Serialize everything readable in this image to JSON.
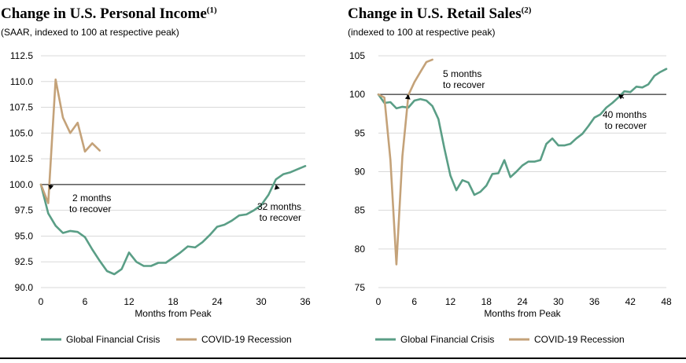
{
  "colors": {
    "gfc": "#5a9e86",
    "covid": "#c4a279",
    "reference": "#000000",
    "grid": "#d9d9d9",
    "axis_text": "#000000"
  },
  "chart_data": [
    {
      "type": "line",
      "title": "Change in U.S. Personal Income",
      "title_note": "(1)",
      "subtitle": "(SAAR, indexed to 100 at respective peak)",
      "xlabel": "Months from Peak",
      "ylabel": "",
      "xlim": [
        0,
        36
      ],
      "ylim": [
        90,
        112.5
      ],
      "xticks": [
        0,
        6,
        12,
        18,
        24,
        30,
        36
      ],
      "yticks": [
        90.0,
        92.5,
        95.0,
        97.5,
        100.0,
        102.5,
        105.0,
        107.5,
        110.0,
        112.5
      ],
      "ytick_labels": [
        "90.0",
        "92.5",
        "95.0",
        "97.5",
        "100.0",
        "102.5",
        "105.0",
        "107.5",
        "110.0",
        "112.5"
      ],
      "grid": "horizontal",
      "reference_line": 100,
      "legend": [
        "Global Financial Crisis",
        "COVID-19 Recession"
      ],
      "legend_position": "bottom",
      "series": [
        {
          "name": "Global Financial Crisis",
          "x": [
            0,
            1,
            2,
            3,
            4,
            5,
            6,
            7,
            8,
            9,
            10,
            11,
            12,
            13,
            14,
            15,
            16,
            17,
            18,
            19,
            20,
            21,
            22,
            23,
            24,
            25,
            26,
            27,
            28,
            29,
            30,
            31,
            32,
            33,
            34,
            35,
            36
          ],
          "values": [
            100.0,
            97.2,
            96.0,
            95.3,
            95.5,
            95.4,
            94.9,
            93.7,
            92.6,
            91.6,
            91.3,
            91.8,
            93.4,
            92.5,
            92.1,
            92.1,
            92.4,
            92.4,
            92.9,
            93.4,
            94.0,
            93.9,
            94.4,
            95.1,
            95.9,
            96.1,
            96.5,
            97.0,
            97.1,
            97.5,
            98.0,
            99.0,
            100.5,
            101.0,
            101.2,
            101.5,
            101.8
          ]
        },
        {
          "name": "COVID-19 Recession",
          "x": [
            0,
            1,
            2,
            3,
            4,
            5,
            6,
            7,
            8
          ],
          "values": [
            100.0,
            98.2,
            110.2,
            106.5,
            105.0,
            106.0,
            103.2,
            104.0,
            103.3
          ]
        }
      ],
      "annotations": [
        {
          "text": [
            "2 months",
            "to recover"
          ],
          "x": 1,
          "y": 100
        },
        {
          "text": [
            "32 months",
            "to recover"
          ],
          "x": 32,
          "y": 100
        }
      ]
    },
    {
      "type": "line",
      "title": "Change in U.S. Retail Sales",
      "title_note": "(2)",
      "subtitle": "(indexed to 100 at respective peak)",
      "xlabel": "Months from Peak",
      "ylabel": "",
      "xlim": [
        0,
        48
      ],
      "ylim": [
        75,
        105
      ],
      "xticks": [
        0,
        6,
        12,
        18,
        24,
        30,
        36,
        42,
        48
      ],
      "yticks": [
        75,
        80,
        85,
        90,
        95,
        100,
        105
      ],
      "ytick_labels": [
        "75",
        "80",
        "85",
        "90",
        "95",
        "100",
        "105"
      ],
      "grid": "horizontal",
      "reference_line": 100,
      "legend": [
        "Global Financial Crisis",
        "COVID-19 Recession"
      ],
      "legend_position": "bottom",
      "series": [
        {
          "name": "Global Financial Crisis",
          "x": [
            0,
            1,
            2,
            3,
            4,
            5,
            6,
            7,
            8,
            9,
            10,
            11,
            12,
            13,
            14,
            15,
            16,
            17,
            18,
            19,
            20,
            21,
            22,
            23,
            24,
            25,
            26,
            27,
            28,
            29,
            30,
            31,
            32,
            33,
            34,
            35,
            36,
            37,
            38,
            39,
            40,
            41,
            42,
            43,
            44,
            45,
            46,
            47,
            48
          ],
          "values": [
            100.0,
            98.9,
            99.0,
            98.2,
            98.4,
            98.3,
            99.2,
            99.4,
            99.2,
            98.5,
            96.8,
            93.0,
            89.5,
            87.6,
            88.9,
            88.6,
            87.0,
            87.4,
            88.2,
            89.7,
            89.8,
            91.5,
            89.3,
            90.0,
            90.8,
            91.3,
            91.3,
            91.5,
            93.6,
            94.3,
            93.4,
            93.4,
            93.6,
            94.3,
            94.9,
            95.9,
            97.0,
            97.4,
            98.3,
            98.9,
            99.6,
            100.4,
            100.3,
            101.0,
            100.9,
            101.3,
            102.4,
            102.9,
            103.3
          ]
        },
        {
          "name": "COVID-19 Recession",
          "x": [
            0,
            1,
            2,
            3,
            4,
            5,
            6,
            7,
            8,
            9
          ],
          "values": [
            100.0,
            99.6,
            91.5,
            78.0,
            92.0,
            99.9,
            101.6,
            102.9,
            104.2,
            104.5
          ]
        }
      ],
      "annotations": [
        {
          "text": [
            "5 months",
            "to recover"
          ],
          "x": 5,
          "y": 100
        },
        {
          "text": [
            "40 months",
            "to recover"
          ],
          "x": 40,
          "y": 100
        }
      ]
    }
  ]
}
